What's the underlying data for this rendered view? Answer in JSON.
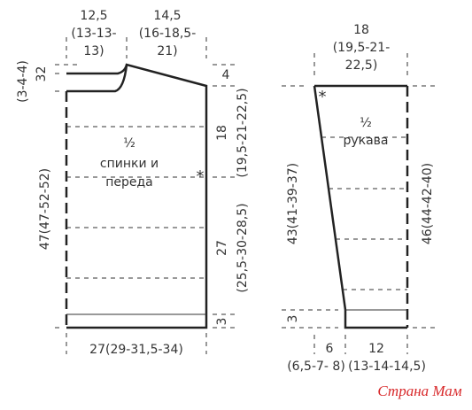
{
  "body": {
    "shoulder_width": "12,5",
    "shoulder_width_sizes_1": "(13-13-",
    "shoulder_width_sizes_2": "13)",
    "neck_width": "14,5",
    "neck_width_sizes_1": "(16-18,5-",
    "neck_width_sizes_2": "21)",
    "neck_depth_a": "3",
    "neck_depth_b": "2",
    "neck_depth_sizes": "(3-4-4)",
    "total_length": "47(47-52-52)",
    "shoulder_slope": "4",
    "armhole_height": "18",
    "armhole_height_sizes": "(19,5-21-22,5)",
    "side_length": "27",
    "side_length_sizes": "(25,5-30-28,5)",
    "rib_height": "3",
    "label_half": "½",
    "label_line1": "спинки и",
    "label_line2": "переда",
    "marker": "*",
    "bottom_width": "27(29-31,5-34)"
  },
  "sleeve": {
    "top_width": "18",
    "top_width_sizes_1": "(19,5-21-",
    "top_width_sizes_2": "22,5)",
    "marker": "*",
    "label_half": "½",
    "label_line1": "рукава",
    "left_length": "43(41-39-37)",
    "rib_height": "3",
    "right_length": "46(44-42-40)",
    "offset": "6",
    "offset_sizes": "(6,5-7- 8)",
    "bottom_width": "12",
    "bottom_width_sizes": "(13-14-14,5)"
  },
  "watermark": "Страна Мам"
}
